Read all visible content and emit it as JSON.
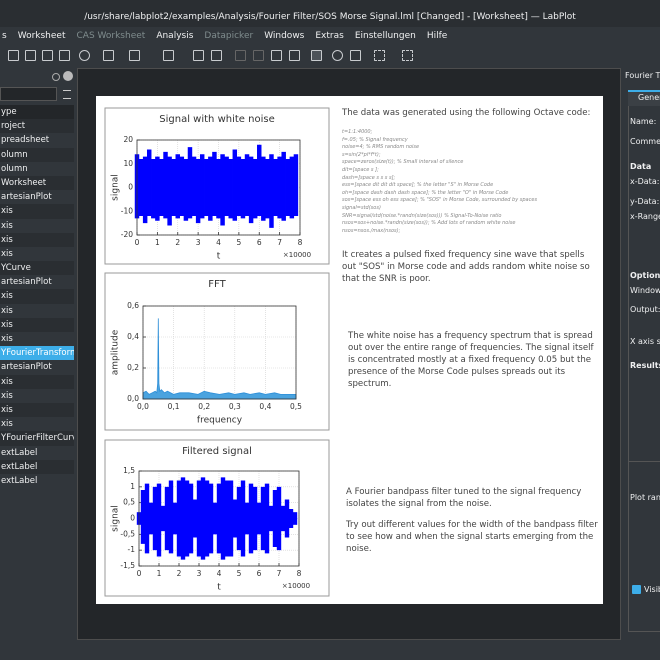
{
  "window_title": "/usr/share/labplot2/examples/Analysis/Fourier Filter/SOS Morse Signal.lml [Changed] - [Worksheet] — LabPlot",
  "menu": [
    {
      "label": "s",
      "enabled": true
    },
    {
      "label": "Worksheet",
      "enabled": true
    },
    {
      "label": "CAS Worksheet",
      "enabled": false
    },
    {
      "label": "Analysis",
      "enabled": true
    },
    {
      "label": "Datapicker",
      "enabled": false
    },
    {
      "label": "Windows",
      "enabled": true
    },
    {
      "label": "Extras",
      "enabled": true
    },
    {
      "label": "Einstellungen",
      "enabled": true
    },
    {
      "label": "Hilfe",
      "enabled": true
    }
  ],
  "project_tree": {
    "header": "ype",
    "items": [
      {
        "label": "roject"
      },
      {
        "label": "preadsheet"
      },
      {
        "label": "olumn"
      },
      {
        "label": "olumn"
      },
      {
        "label": "Worksheet"
      },
      {
        "label": "artesianPlot"
      },
      {
        "label": "xis"
      },
      {
        "label": "xis"
      },
      {
        "label": "xis"
      },
      {
        "label": "xis"
      },
      {
        "label": "YCurve"
      },
      {
        "label": "artesianPlot"
      },
      {
        "label": "xis"
      },
      {
        "label": "xis"
      },
      {
        "label": "xis"
      },
      {
        "label": "xis"
      },
      {
        "label": "YFourierTransformCurv",
        "selected": true
      },
      {
        "label": "artesianPlot"
      },
      {
        "label": "xis"
      },
      {
        "label": "xis"
      },
      {
        "label": "xis"
      },
      {
        "label": "xis"
      },
      {
        "label": "YFourierFilterCurve"
      },
      {
        "label": "extLabel"
      },
      {
        "label": "extLabel"
      },
      {
        "label": "extLabel"
      }
    ]
  },
  "worksheet": {
    "intro": "The data was generated using the following Octave code:",
    "code": [
      "t=1:1:4000;",
      "f=.05; % Signal frequency",
      "noise=4; % RMS random noise",
      "s=sin(2*pi*f*t);",
      "space=zeros(size(t)); % Small interval of silence",
      "dit=[space s ];",
      "dash=[space s s s s];",
      "ess=[space dit dit dit space]; % the letter \"S\" in Morse Code",
      "oh=[space dash dash dash space]; % the letter \"O\" in Morse Code",
      "sos=[space ess oh ess space]; % \"SOS\" in Morse Code, surrounded by spaces",
      "signal=std(sos)",
      "SNR=signal/std(noise.*randn(size(sos))) % Signal-To-Noise ratio",
      "nsos=sos+noise.*randn(size(sos)); % Add lots of random white noise",
      "nsos=nsos./max(nsos);"
    ],
    "paragraphs": [
      "It creates a pulsed fixed frequency sine wave that spells out \"SOS\" in Morse code and adds random white noise so that the SNR is poor.",
      "The white noise has a frequency spectrum that is spread out over the entire range of frequencies. The signal itself is concentrated mostly at a fixed frequency 0.05 but the presence of the Morse Code pulses spreads out its spectrum.",
      "A Fourier bandpass filter tuned to the signal frequency isolates the signal from the noise.",
      "Try out different values for the width of the bandpass filter to see how and when the signal starts emerging from the noise."
    ]
  },
  "chart_data": [
    {
      "type": "band",
      "title": "Signal with white noise",
      "xlabel": "t",
      "ylabel": "signal",
      "x_multiplier": "×10000",
      "color": "#0000ff",
      "grid": true,
      "xlim": [
        0,
        8
      ],
      "ylim": [
        -20,
        20
      ],
      "xticks": [
        0,
        1,
        2,
        3,
        4,
        5,
        6,
        7,
        8
      ],
      "yticks": [
        -20,
        -10,
        0,
        10,
        20
      ],
      "x": [
        0,
        0.2,
        0.4,
        0.6,
        0.8,
        1,
        1.2,
        1.4,
        1.6,
        1.8,
        2,
        2.2,
        2.4,
        2.6,
        2.8,
        3,
        3.2,
        3.4,
        3.6,
        3.8,
        4,
        4.2,
        4.4,
        4.6,
        4.8,
        5,
        5.2,
        5.4,
        5.6,
        5.8,
        6,
        6.2,
        6.4,
        6.6,
        6.8,
        7,
        7.2,
        7.4,
        7.6,
        7.8
      ],
      "upper": [
        14,
        12,
        13,
        16,
        12,
        13,
        12,
        15,
        13,
        12,
        14,
        13,
        12,
        17,
        13,
        12,
        14,
        12,
        13,
        15,
        12,
        14,
        13,
        12,
        16,
        13,
        12,
        14,
        13,
        12,
        18,
        13,
        12,
        14,
        12,
        13,
        15,
        12,
        13,
        14
      ],
      "lower": [
        -13,
        -12,
        -15,
        -12,
        -13,
        -14,
        -12,
        -13,
        -16,
        -12,
        -13,
        -12,
        -14,
        -13,
        -12,
        -15,
        -13,
        -12,
        -14,
        -12,
        -13,
        -16,
        -12,
        -13,
        -14,
        -12,
        -13,
        -12,
        -15,
        -13,
        -12,
        -14,
        -13,
        -17,
        -12,
        -13,
        -14,
        -12,
        -13,
        -12
      ]
    },
    {
      "type": "area",
      "title": "FFT",
      "xlabel": "frequency",
      "ylabel": "amplitude",
      "color": "#2e8fd8",
      "fill": "#4aa3df",
      "grid": true,
      "xlim": [
        0,
        0.5
      ],
      "ylim": [
        0,
        0.6
      ],
      "xticks": [
        {
          "value": 0,
          "label": "0,0"
        },
        {
          "value": 0.1,
          "label": "0,1"
        },
        {
          "value": 0.2,
          "label": "0,2"
        },
        {
          "value": 0.3,
          "label": "0,3"
        },
        {
          "value": 0.4,
          "label": "0,4"
        },
        {
          "value": 0.5,
          "label": "0,5"
        }
      ],
      "yticks": [
        {
          "value": 0,
          "label": "0,0"
        },
        {
          "value": 0.2,
          "label": "0,2"
        },
        {
          "value": 0.4,
          "label": "0,4"
        },
        {
          "value": 0.6,
          "label": "0,6"
        }
      ],
      "x": [
        0,
        0.01,
        0.02,
        0.03,
        0.04,
        0.045,
        0.048,
        0.05,
        0.052,
        0.055,
        0.06,
        0.07,
        0.08,
        0.1,
        0.12,
        0.15,
        0.18,
        0.2,
        0.22,
        0.25,
        0.28,
        0.3,
        0.33,
        0.35,
        0.38,
        0.4,
        0.43,
        0.45,
        0.48,
        0.5
      ],
      "values": [
        0.04,
        0.05,
        0.03,
        0.04,
        0.05,
        0.04,
        0.1,
        0.52,
        0.1,
        0.05,
        0.06,
        0.04,
        0.05,
        0.03,
        0.04,
        0.04,
        0.03,
        0.05,
        0.04,
        0.03,
        0.04,
        0.03,
        0.04,
        0.03,
        0.04,
        0.03,
        0.04,
        0.03,
        0.03,
        0.03
      ]
    },
    {
      "type": "band",
      "title": "Filtered signal",
      "xlabel": "t",
      "ylabel": "signal",
      "x_multiplier": "×10000",
      "color": "#0000ff",
      "grid": true,
      "xlim": [
        0,
        8
      ],
      "ylim": [
        -1.5,
        1.5
      ],
      "xticks": [
        0,
        1,
        2,
        3,
        4,
        5,
        6,
        7,
        8
      ],
      "yticks": [
        {
          "value": -1.5,
          "label": "-1,5"
        },
        {
          "value": -1,
          "label": "-1"
        },
        {
          "value": -0.5,
          "label": "-0,5"
        },
        0,
        {
          "value": 0.5,
          "label": "0,5"
        },
        1,
        {
          "value": 1.5,
          "label": "1,5"
        }
      ],
      "x": [
        0,
        0.2,
        0.4,
        0.6,
        0.8,
        1,
        1.2,
        1.4,
        1.6,
        1.8,
        2,
        2.2,
        2.4,
        2.6,
        2.8,
        3,
        3.2,
        3.4,
        3.6,
        3.8,
        4,
        4.2,
        4.4,
        4.6,
        4.8,
        5,
        5.2,
        5.4,
        5.6,
        5.8,
        6,
        6.2,
        6.4,
        6.6,
        6.8,
        7,
        7.2,
        7.4,
        7.6,
        7.8
      ],
      "upper": [
        0.2,
        0.9,
        1.1,
        0.5,
        1.0,
        1.1,
        0.4,
        1.0,
        1.2,
        0.5,
        1.2,
        1.3,
        1.2,
        1.1,
        0.6,
        1.2,
        1.3,
        1.2,
        1.1,
        0.5,
        1.1,
        1.3,
        1.2,
        1.2,
        0.6,
        1.0,
        1.2,
        0.5,
        1.1,
        1.0,
        0.5,
        1.0,
        1.1,
        0.4,
        0.9,
        1.0,
        0.4,
        0.6,
        0.3,
        0.2
      ],
      "lower": [
        -0.2,
        -0.8,
        -1.1,
        -0.5,
        -1.0,
        -1.2,
        -0.4,
        -1.0,
        -1.1,
        -0.5,
        -1.2,
        -1.3,
        -1.2,
        -1.1,
        -0.6,
        -1.2,
        -1.3,
        -1.2,
        -1.1,
        -0.5,
        -1.1,
        -1.3,
        -1.2,
        -1.2,
        -0.6,
        -1.0,
        -1.2,
        -0.5,
        -1.1,
        -1.0,
        -0.5,
        -1.0,
        -1.1,
        -0.4,
        -0.9,
        -1.0,
        -0.4,
        -0.6,
        -0.3,
        -0.2
      ]
    }
  ],
  "properties": {
    "title": "Fourier Tra",
    "tab": "Genera",
    "labels": [
      {
        "text": "Name:"
      },
      {
        "text": "Commen"
      },
      {
        "text": "Data",
        "heading": true
      },
      {
        "text": "x-Data:"
      },
      {
        "text": "y-Data:"
      },
      {
        "text": "x-Range:"
      },
      {
        "text": "Options",
        "heading": true
      },
      {
        "text": "Window:"
      },
      {
        "text": "Output:"
      },
      {
        "text": "X axis sca"
      },
      {
        "text": "Results:",
        "heading": true
      },
      {
        "text": "Plot rang"
      }
    ],
    "visible": "Visib"
  }
}
